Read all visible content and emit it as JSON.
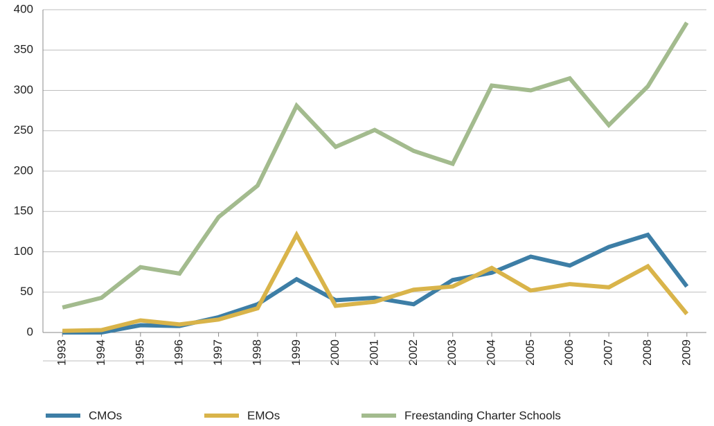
{
  "chart_data": {
    "type": "line",
    "categories": [
      "1993",
      "1994",
      "1995",
      "1996",
      "1997",
      "1998",
      "1999",
      "2000",
      "2001",
      "2002",
      "2003",
      "2004",
      "2005",
      "2006",
      "2007",
      "2008",
      "2009"
    ],
    "series": [
      {
        "name": "CMOs",
        "color": "#3d7ea6",
        "values": [
          0,
          0,
          9,
          8,
          19,
          35,
          66,
          40,
          43,
          35,
          65,
          74,
          94,
          83,
          106,
          121,
          57
        ]
      },
      {
        "name": "EMOs",
        "color": "#d9b44a",
        "values": [
          2,
          3,
          15,
          10,
          16,
          30,
          121,
          33,
          38,
          53,
          57,
          80,
          52,
          60,
          56,
          82,
          23
        ]
      },
      {
        "name": "Freestanding Charter Schools",
        "color": "#a3bb8e",
        "values": [
          31,
          43,
          81,
          73,
          143,
          182,
          281,
          230,
          251,
          225,
          209,
          306,
          300,
          315,
          257,
          305,
          384
        ]
      }
    ],
    "ylim": [
      0,
      400
    ],
    "yticks": [
      0,
      50,
      100,
      150,
      200,
      250,
      300,
      350,
      400
    ],
    "grid": true,
    "legend": "bottom"
  }
}
